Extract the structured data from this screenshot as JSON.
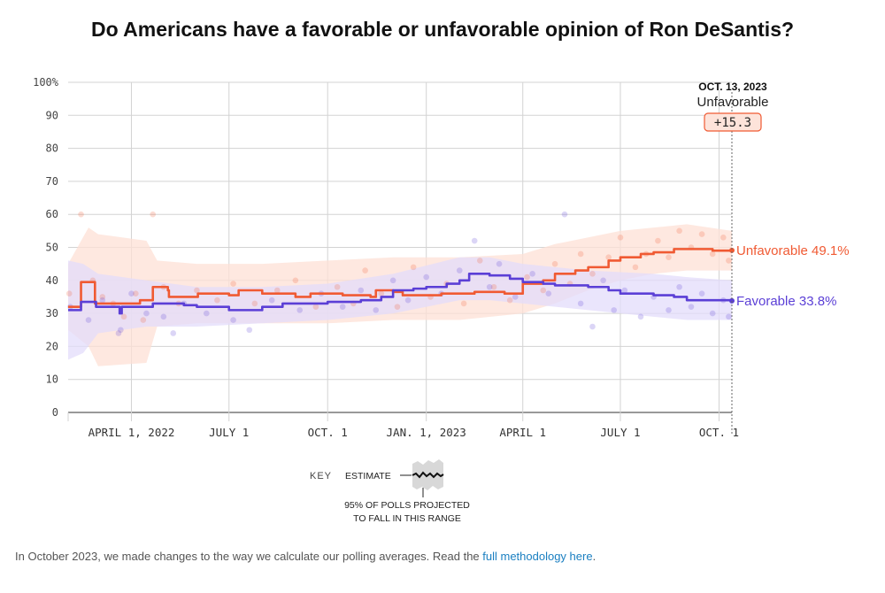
{
  "title": "Do Americans have a favorable or unfavorable opinion of Ron DeSantis?",
  "footnote": {
    "text": "In October 2023, we made changes to the way we calculate our polling averages. Read the ",
    "link": "full methodology here",
    "after": "."
  },
  "colors": {
    "unfavorable": "#f05a33",
    "favorable": "#5b3fd6",
    "grid": "#d3d3d3",
    "band_unfav": "#fde0d6",
    "band_fav": "#e3dcfb"
  },
  "callout": {
    "date": "OCT. 13, 2023",
    "label": "Unfavorable",
    "margin": "+15.3"
  },
  "key": {
    "key_label": "KEY",
    "estimate_label": "ESTIMATE",
    "range_line1": "95% OF POLLS PROJECTED",
    "range_line2": "TO FALL IN THIS RANGE"
  },
  "chart_data": {
    "type": "line",
    "title": "Do Americans have a favorable or unfavorable opinion of Ron DeSantis?",
    "y_ticks": [
      "100%",
      "90",
      "80",
      "70",
      "60",
      "50",
      "40",
      "30",
      "20",
      "10",
      "0"
    ],
    "ylim": [
      0,
      100
    ],
    "x_domain": [
      "2022-02-01",
      "2023-10-13"
    ],
    "x_ticks": [
      {
        "date": "2022-04-01",
        "label": "APRIL 1, 2022"
      },
      {
        "date": "2022-07-01",
        "label": "JULY 1"
      },
      {
        "date": "2022-10-01",
        "label": "OCT. 1"
      },
      {
        "date": "2023-01-01",
        "label": "JAN. 1, 2023"
      },
      {
        "date": "2023-04-01",
        "label": "APRIL 1"
      },
      {
        "date": "2023-07-01",
        "label": "JULY 1"
      },
      {
        "date": "2023-10-01",
        "label": "OCT. 1"
      }
    ],
    "series": [
      {
        "name": "Unfavorable",
        "end_label": "Unfavorable 49.1%",
        "color_key": "unfavorable",
        "points": [
          [
            "2022-02-01",
            32
          ],
          [
            "2022-02-12",
            32
          ],
          [
            "2022-02-13",
            39.5
          ],
          [
            "2022-02-25",
            39.5
          ],
          [
            "2022-02-26",
            33
          ],
          [
            "2022-04-08",
            33
          ],
          [
            "2022-04-09",
            34
          ],
          [
            "2022-04-20",
            34
          ],
          [
            "2022-04-21",
            38
          ],
          [
            "2022-05-05",
            37
          ],
          [
            "2022-05-06",
            35
          ],
          [
            "2022-06-01",
            35
          ],
          [
            "2022-06-02",
            36
          ],
          [
            "2022-07-01",
            35.5
          ],
          [
            "2022-07-10",
            37
          ],
          [
            "2022-08-01",
            36
          ],
          [
            "2022-09-01",
            35
          ],
          [
            "2022-09-15",
            36
          ],
          [
            "2022-10-15",
            35.5
          ],
          [
            "2022-11-10",
            35
          ],
          [
            "2022-11-15",
            37
          ],
          [
            "2022-12-01",
            36.5
          ],
          [
            "2022-12-10",
            35.5
          ],
          [
            "2023-01-15",
            36
          ],
          [
            "2023-02-15",
            36.5
          ],
          [
            "2023-03-15",
            36
          ],
          [
            "2023-04-01",
            39
          ],
          [
            "2023-04-20",
            40
          ],
          [
            "2023-05-01",
            42
          ],
          [
            "2023-05-20",
            43
          ],
          [
            "2023-06-01",
            44
          ],
          [
            "2023-06-20",
            46
          ],
          [
            "2023-07-01",
            47
          ],
          [
            "2023-07-20",
            48
          ],
          [
            "2023-08-01",
            48.5
          ],
          [
            "2023-08-20",
            49.5
          ],
          [
            "2023-09-10",
            49.5
          ],
          [
            "2023-09-25",
            49
          ],
          [
            "2023-10-13",
            49.1
          ]
        ],
        "band_upper": [
          [
            "2022-02-01",
            45
          ],
          [
            "2022-02-20",
            56
          ],
          [
            "2022-03-01",
            54
          ],
          [
            "2022-04-15",
            52
          ],
          [
            "2022-04-25",
            46
          ],
          [
            "2022-06-01",
            45
          ],
          [
            "2022-08-01",
            45
          ],
          [
            "2022-10-01",
            46
          ],
          [
            "2022-12-01",
            47
          ],
          [
            "2023-02-01",
            47
          ],
          [
            "2023-04-01",
            48
          ],
          [
            "2023-05-01",
            51
          ],
          [
            "2023-06-01",
            53
          ],
          [
            "2023-07-01",
            55
          ],
          [
            "2023-08-01",
            56
          ],
          [
            "2023-09-01",
            57
          ],
          [
            "2023-10-13",
            55
          ]
        ],
        "band_lower": [
          [
            "2022-02-01",
            25
          ],
          [
            "2022-02-20",
            20
          ],
          [
            "2022-03-01",
            14
          ],
          [
            "2022-04-15",
            15
          ],
          [
            "2022-04-25",
            26
          ],
          [
            "2022-06-01",
            27
          ],
          [
            "2022-08-01",
            27
          ],
          [
            "2022-10-01",
            27
          ],
          [
            "2022-12-01",
            28
          ],
          [
            "2023-02-01",
            28
          ],
          [
            "2023-04-01",
            30
          ],
          [
            "2023-05-01",
            33
          ],
          [
            "2023-06-01",
            37
          ],
          [
            "2023-07-01",
            40
          ],
          [
            "2023-08-01",
            42
          ],
          [
            "2023-09-01",
            43
          ],
          [
            "2023-10-13",
            43
          ]
        ],
        "polls": [
          [
            "2022-02-02",
            36
          ],
          [
            "2022-02-13",
            60
          ],
          [
            "2022-02-24",
            40
          ],
          [
            "2022-03-05",
            35
          ],
          [
            "2022-03-15",
            33
          ],
          [
            "2022-03-25",
            29
          ],
          [
            "2022-04-05",
            36
          ],
          [
            "2022-04-12",
            28
          ],
          [
            "2022-04-21",
            60
          ],
          [
            "2022-05-01",
            38
          ],
          [
            "2022-05-15",
            33
          ],
          [
            "2022-06-01",
            37
          ],
          [
            "2022-06-20",
            34
          ],
          [
            "2022-07-05",
            39
          ],
          [
            "2022-07-25",
            33
          ],
          [
            "2022-08-15",
            37
          ],
          [
            "2022-09-01",
            40
          ],
          [
            "2022-09-20",
            32
          ],
          [
            "2022-10-10",
            38
          ],
          [
            "2022-10-25",
            33
          ],
          [
            "2022-11-05",
            43
          ],
          [
            "2022-11-20",
            36
          ],
          [
            "2022-12-05",
            32
          ],
          [
            "2022-12-20",
            44
          ],
          [
            "2023-01-05",
            35
          ],
          [
            "2023-01-20",
            39
          ],
          [
            "2023-02-05",
            33
          ],
          [
            "2023-02-20",
            46
          ],
          [
            "2023-03-05",
            38
          ],
          [
            "2023-03-20",
            34
          ],
          [
            "2023-04-05",
            41
          ],
          [
            "2023-04-20",
            37
          ],
          [
            "2023-05-01",
            45
          ],
          [
            "2023-05-15",
            39
          ],
          [
            "2023-05-25",
            48
          ],
          [
            "2023-06-05",
            42
          ],
          [
            "2023-06-20",
            47
          ],
          [
            "2023-07-01",
            53
          ],
          [
            "2023-07-15",
            44
          ],
          [
            "2023-07-25",
            48
          ],
          [
            "2023-08-05",
            52
          ],
          [
            "2023-08-15",
            47
          ],
          [
            "2023-08-25",
            55
          ],
          [
            "2023-09-05",
            50
          ],
          [
            "2023-09-15",
            54
          ],
          [
            "2023-09-25",
            48
          ],
          [
            "2023-10-05",
            53
          ],
          [
            "2023-10-10",
            46
          ]
        ]
      },
      {
        "name": "Favorable",
        "end_label": "Favorable 33.8%",
        "color_key": "favorable",
        "points": [
          [
            "2022-02-01",
            31
          ],
          [
            "2022-02-12",
            31
          ],
          [
            "2022-02-13",
            33.5
          ],
          [
            "2022-02-26",
            33.5
          ],
          [
            "2022-02-27",
            32
          ],
          [
            "2022-03-20",
            32
          ],
          [
            "2022-03-21",
            30
          ],
          [
            "2022-03-23",
            32
          ],
          [
            "2022-04-20",
            32
          ],
          [
            "2022-04-21",
            33
          ],
          [
            "2022-05-20",
            32.5
          ],
          [
            "2022-06-01",
            32
          ],
          [
            "2022-07-01",
            31
          ],
          [
            "2022-08-01",
            32
          ],
          [
            "2022-08-20",
            33
          ],
          [
            "2022-09-20",
            33
          ],
          [
            "2022-10-01",
            33.5
          ],
          [
            "2022-11-01",
            34
          ],
          [
            "2022-11-20",
            35
          ],
          [
            "2022-12-01",
            37
          ],
          [
            "2022-12-20",
            37.5
          ],
          [
            "2023-01-01",
            38
          ],
          [
            "2023-01-20",
            39
          ],
          [
            "2023-02-01",
            40
          ],
          [
            "2023-02-10",
            42
          ],
          [
            "2023-03-01",
            41.5
          ],
          [
            "2023-03-20",
            40.5
          ],
          [
            "2023-04-01",
            39.5
          ],
          [
            "2023-04-20",
            39
          ],
          [
            "2023-05-01",
            38.5
          ],
          [
            "2023-05-20",
            38.5
          ],
          [
            "2023-06-01",
            38
          ],
          [
            "2023-06-20",
            37
          ],
          [
            "2023-07-01",
            36
          ],
          [
            "2023-07-20",
            36
          ],
          [
            "2023-08-01",
            35.5
          ],
          [
            "2023-08-20",
            35
          ],
          [
            "2023-09-01",
            34
          ],
          [
            "2023-09-20",
            34
          ],
          [
            "2023-10-13",
            33.8
          ]
        ],
        "band_upper": [
          [
            "2022-02-01",
            46
          ],
          [
            "2022-02-15",
            45
          ],
          [
            "2022-03-01",
            42
          ],
          [
            "2022-04-15",
            40
          ],
          [
            "2022-06-01",
            38
          ],
          [
            "2022-08-01",
            38
          ],
          [
            "2022-10-01",
            39
          ],
          [
            "2022-12-01",
            42
          ],
          [
            "2023-02-01",
            47
          ],
          [
            "2023-03-01",
            47
          ],
          [
            "2023-04-01",
            45
          ],
          [
            "2023-06-01",
            43
          ],
          [
            "2023-08-01",
            42
          ],
          [
            "2023-09-01",
            41
          ],
          [
            "2023-10-13",
            40
          ]
        ],
        "band_lower": [
          [
            "2022-02-01",
            16
          ],
          [
            "2022-02-15",
            18
          ],
          [
            "2022-03-01",
            24
          ],
          [
            "2022-04-15",
            26
          ],
          [
            "2022-06-01",
            26
          ],
          [
            "2022-08-01",
            27
          ],
          [
            "2022-10-01",
            28
          ],
          [
            "2022-12-01",
            30
          ],
          [
            "2023-02-01",
            34
          ],
          [
            "2023-03-01",
            34
          ],
          [
            "2023-04-01",
            33
          ],
          [
            "2023-06-01",
            31
          ],
          [
            "2023-08-01",
            29
          ],
          [
            "2023-09-01",
            28
          ],
          [
            "2023-10-13",
            28
          ]
        ],
        "polls": [
          [
            "2022-02-03",
            32
          ],
          [
            "2022-02-20",
            28
          ],
          [
            "2022-03-05",
            34
          ],
          [
            "2022-03-20",
            24
          ],
          [
            "2022-03-22",
            25
          ],
          [
            "2022-04-01",
            36
          ],
          [
            "2022-04-15",
            30
          ],
          [
            "2022-05-01",
            29
          ],
          [
            "2022-05-10",
            24
          ],
          [
            "2022-05-20",
            33
          ],
          [
            "2022-06-10",
            30
          ],
          [
            "2022-07-05",
            28
          ],
          [
            "2022-07-20",
            25
          ],
          [
            "2022-08-10",
            34
          ],
          [
            "2022-09-05",
            31
          ],
          [
            "2022-09-25",
            36
          ],
          [
            "2022-10-15",
            32
          ],
          [
            "2022-11-01",
            37
          ],
          [
            "2022-11-15",
            31
          ],
          [
            "2022-12-01",
            40
          ],
          [
            "2022-12-15",
            34
          ],
          [
            "2023-01-01",
            41
          ],
          [
            "2023-01-15",
            36
          ],
          [
            "2023-02-01",
            43
          ],
          [
            "2023-02-15",
            52
          ],
          [
            "2023-03-01",
            38
          ],
          [
            "2023-03-10",
            45
          ],
          [
            "2023-03-25",
            35
          ],
          [
            "2023-04-10",
            42
          ],
          [
            "2023-04-25",
            36
          ],
          [
            "2023-05-10",
            60
          ],
          [
            "2023-05-25",
            33
          ],
          [
            "2023-06-05",
            26
          ],
          [
            "2023-06-15",
            40
          ],
          [
            "2023-06-25",
            31
          ],
          [
            "2023-07-05",
            37
          ],
          [
            "2023-07-20",
            29
          ],
          [
            "2023-08-01",
            35
          ],
          [
            "2023-08-15",
            31
          ],
          [
            "2023-08-25",
            38
          ],
          [
            "2023-09-05",
            32
          ],
          [
            "2023-09-15",
            36
          ],
          [
            "2023-09-25",
            30
          ],
          [
            "2023-10-05",
            34
          ],
          [
            "2023-10-10",
            29
          ]
        ]
      }
    ]
  }
}
